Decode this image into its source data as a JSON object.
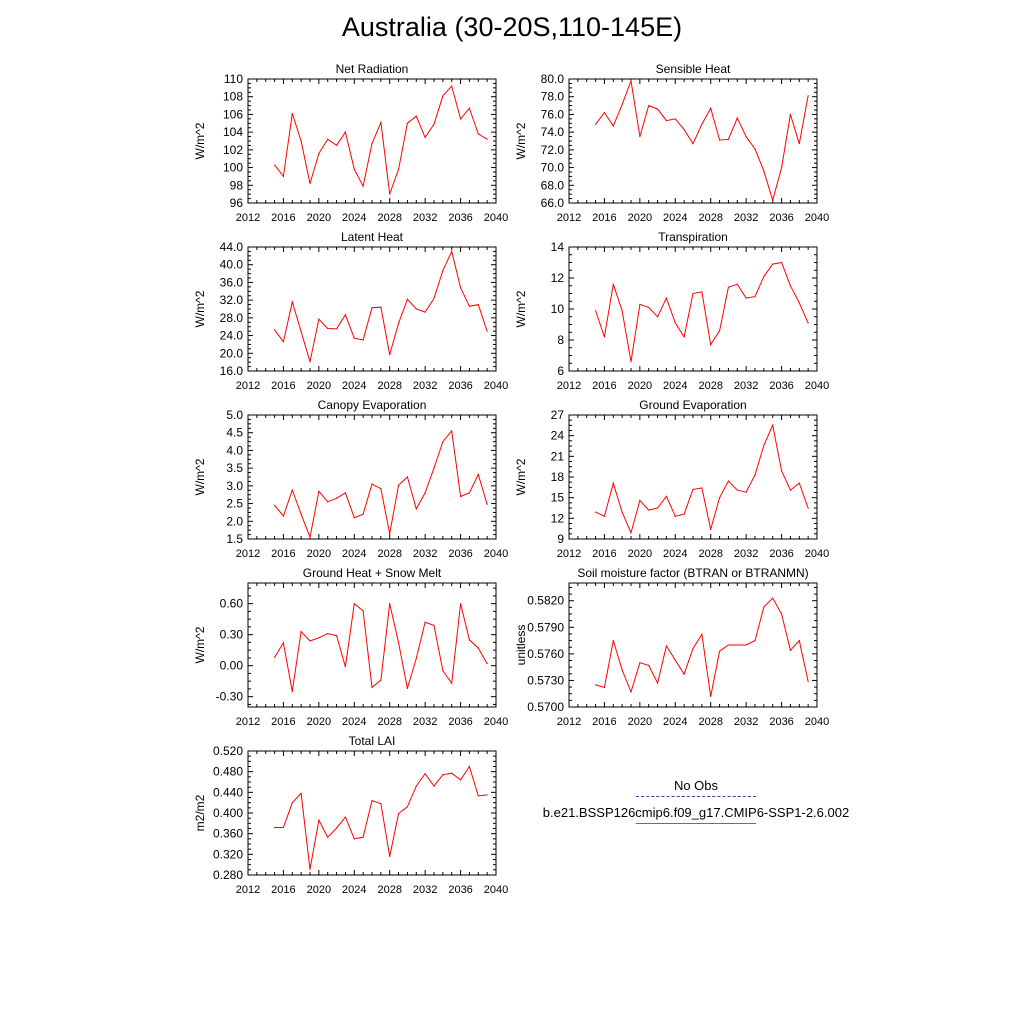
{
  "title": "Australia (30-20S,110-145E)",
  "legend": {
    "obs_label": "No Obs",
    "model_label": "b.e21.BSSP126cmip6.f09_g17.CMIP6-SSP1-2.6.002",
    "obs_color": "#3a3aa8",
    "model_color": "#ff0000"
  },
  "chart_data": [
    {
      "type": "line",
      "title": "Net Radiation",
      "ylabel": "W/m^2",
      "xlim": [
        2012,
        2040
      ],
      "xticks": [
        "2012",
        "2016",
        "2020",
        "2024",
        "2028",
        "2032",
        "2036",
        "2040"
      ],
      "ylim": [
        96,
        110
      ],
      "yticks": [
        "96",
        "98",
        "100",
        "102",
        "104",
        "106",
        "108",
        "110"
      ],
      "series": [
        {
          "x": [
            2015,
            2016,
            2017,
            2018,
            2019,
            2020,
            2021,
            2022,
            2023,
            2024,
            2025,
            2026,
            2027,
            2028,
            2029,
            2030,
            2031,
            2032,
            2033,
            2034,
            2035,
            2036,
            2037,
            2038,
            2039
          ],
          "values": [
            100.3,
            99.0,
            106.1,
            103.0,
            98.2,
            101.6,
            103.2,
            102.5,
            104.0,
            99.8,
            97.9,
            102.7,
            105.1,
            97.0,
            99.8,
            105.0,
            105.8,
            103.4,
            104.9,
            108.1,
            109.2,
            105.5,
            106.7,
            103.8,
            103.2
          ]
        }
      ]
    },
    {
      "type": "line",
      "title": "Sensible Heat",
      "ylabel": "W/m^2",
      "xlim": [
        2012,
        2040
      ],
      "xticks": [
        "2012",
        "2016",
        "2020",
        "2024",
        "2028",
        "2032",
        "2036",
        "2040"
      ],
      "ylim": [
        66,
        80
      ],
      "yticks": [
        "66.0",
        "68.0",
        "70.0",
        "72.0",
        "74.0",
        "76.0",
        "78.0",
        "80.0"
      ],
      "series": [
        {
          "x": [
            2015,
            2016,
            2017,
            2018,
            2019,
            2020,
            2021,
            2022,
            2023,
            2024,
            2025,
            2026,
            2027,
            2028,
            2029,
            2030,
            2031,
            2032,
            2033,
            2034,
            2035,
            2036,
            2037,
            2038,
            2039
          ],
          "values": [
            74.9,
            76.2,
            74.7,
            77.1,
            79.8,
            73.5,
            77.0,
            76.6,
            75.3,
            75.5,
            74.3,
            72.7,
            74.9,
            76.7,
            73.1,
            73.2,
            75.6,
            73.5,
            72.1,
            69.6,
            66.3,
            70.0,
            76.0,
            72.7,
            78.1
          ]
        }
      ]
    },
    {
      "type": "line",
      "title": "Latent Heat",
      "ylabel": "W/m^2",
      "xlim": [
        2012,
        2040
      ],
      "xticks": [
        "2012",
        "2016",
        "2020",
        "2024",
        "2028",
        "2032",
        "2036",
        "2040"
      ],
      "ylim": [
        16,
        44
      ],
      "yticks": [
        "16.0",
        "20.0",
        "24.0",
        "28.0",
        "32.0",
        "36.0",
        "40.0",
        "44.0"
      ],
      "series": [
        {
          "x": [
            2015,
            2016,
            2017,
            2018,
            2019,
            2020,
            2021,
            2022,
            2023,
            2024,
            2025,
            2026,
            2027,
            2028,
            2029,
            2030,
            2031,
            2032,
            2033,
            2034,
            2035,
            2036,
            2037,
            2038,
            2039
          ],
          "values": [
            25.3,
            22.6,
            31.6,
            24.9,
            18.1,
            27.7,
            25.6,
            25.5,
            28.7,
            23.4,
            23.0,
            30.3,
            30.4,
            19.7,
            26.8,
            32.2,
            30.0,
            29.3,
            32.4,
            38.7,
            43.0,
            34.8,
            30.6,
            31.0,
            25.0
          ]
        }
      ]
    },
    {
      "type": "line",
      "title": "Transpiration",
      "ylabel": "W/m^2",
      "xlim": [
        2012,
        2040
      ],
      "xticks": [
        "2012",
        "2016",
        "2020",
        "2024",
        "2028",
        "2032",
        "2036",
        "2040"
      ],
      "ylim": [
        6,
        14
      ],
      "yticks": [
        "6",
        "8",
        "10",
        "12",
        "14"
      ],
      "series": [
        {
          "x": [
            2015,
            2016,
            2017,
            2018,
            2019,
            2020,
            2021,
            2022,
            2023,
            2024,
            2025,
            2026,
            2027,
            2028,
            2029,
            2030,
            2031,
            2032,
            2033,
            2034,
            2035,
            2036,
            2037,
            2038,
            2039
          ],
          "values": [
            9.9,
            8.2,
            11.6,
            9.9,
            6.6,
            10.3,
            10.1,
            9.5,
            10.7,
            9.1,
            8.2,
            11.0,
            11.1,
            7.7,
            8.6,
            11.4,
            11.6,
            10.7,
            10.8,
            12.1,
            12.9,
            13.0,
            11.5,
            10.4,
            9.1
          ]
        }
      ]
    },
    {
      "type": "line",
      "title": "Canopy Evaporation",
      "ylabel": "W/m^2",
      "xlim": [
        2012,
        2040
      ],
      "xticks": [
        "2012",
        "2016",
        "2020",
        "2024",
        "2028",
        "2032",
        "2036",
        "2040"
      ],
      "ylim": [
        1.5,
        5.0
      ],
      "yticks": [
        "1.5",
        "2.0",
        "2.5",
        "3.0",
        "3.5",
        "4.0",
        "4.5",
        "5.0"
      ],
      "series": [
        {
          "x": [
            2015,
            2016,
            2017,
            2018,
            2019,
            2020,
            2021,
            2022,
            2023,
            2024,
            2025,
            2026,
            2027,
            2028,
            2029,
            2030,
            2031,
            2032,
            2033,
            2034,
            2035,
            2036,
            2037,
            2038,
            2039
          ],
          "values": [
            2.45,
            2.15,
            2.88,
            2.2,
            1.55,
            2.85,
            2.55,
            2.65,
            2.8,
            2.1,
            2.2,
            3.05,
            2.92,
            1.65,
            3.02,
            3.25,
            2.35,
            2.8,
            3.5,
            4.25,
            4.55,
            2.7,
            2.8,
            3.32,
            2.48
          ]
        }
      ]
    },
    {
      "type": "line",
      "title": "Ground Evaporation",
      "ylabel": "W/m^2",
      "xlim": [
        2012,
        2040
      ],
      "xticks": [
        "2012",
        "2016",
        "2020",
        "2024",
        "2028",
        "2032",
        "2036",
        "2040"
      ],
      "ylim": [
        9,
        27
      ],
      "yticks": [
        "9",
        "12",
        "15",
        "18",
        "21",
        "24",
        "27"
      ],
      "series": [
        {
          "x": [
            2015,
            2016,
            2017,
            2018,
            2019,
            2020,
            2021,
            2022,
            2023,
            2024,
            2025,
            2026,
            2027,
            2028,
            2029,
            2030,
            2031,
            2032,
            2033,
            2034,
            2035,
            2036,
            2037,
            2038,
            2039
          ],
          "values": [
            12.9,
            12.3,
            17.1,
            12.9,
            9.9,
            14.6,
            13.2,
            13.5,
            15.2,
            12.3,
            12.6,
            16.2,
            16.4,
            10.4,
            15.0,
            17.4,
            16.1,
            15.8,
            18.3,
            22.6,
            25.5,
            18.9,
            16.1,
            17.1,
            13.5
          ]
        }
      ]
    },
    {
      "type": "line",
      "title": "Ground Heat + Snow Melt",
      "ylabel": "W/m^2",
      "xlim": [
        2012,
        2040
      ],
      "xticks": [
        "2012",
        "2016",
        "2020",
        "2024",
        "2028",
        "2032",
        "2036",
        "2040"
      ],
      "ylim": [
        -0.4,
        0.8
      ],
      "yticks": [
        "-0.30",
        "0.00",
        "0.30",
        "0.60"
      ],
      "ytick_values": [
        -0.3,
        0.0,
        0.3,
        0.6
      ],
      "series": [
        {
          "x": [
            2015,
            2016,
            2017,
            2018,
            2019,
            2020,
            2021,
            2022,
            2023,
            2024,
            2025,
            2026,
            2027,
            2028,
            2029,
            2030,
            2031,
            2032,
            2033,
            2034,
            2035,
            2036,
            2037,
            2038,
            2039
          ],
          "values": [
            0.08,
            0.22,
            -0.25,
            0.33,
            0.24,
            0.27,
            0.31,
            0.29,
            -0.01,
            0.6,
            0.53,
            -0.21,
            -0.14,
            0.6,
            0.22,
            -0.22,
            0.07,
            0.42,
            0.39,
            -0.05,
            -0.17,
            0.6,
            0.25,
            0.17,
            0.02
          ]
        }
      ]
    },
    {
      "type": "line",
      "title": "Soil moisture factor (BTRAN or BTRANMN)",
      "ylabel": "unitless",
      "xlim": [
        2012,
        2040
      ],
      "xticks": [
        "2012",
        "2016",
        "2020",
        "2024",
        "2028",
        "2032",
        "2036",
        "2040"
      ],
      "ylim": [
        0.57,
        0.584
      ],
      "yticks": [
        "0.5700",
        "0.5730",
        "0.5760",
        "0.5790",
        "0.5820"
      ],
      "ytick_values": [
        0.57,
        0.573,
        0.576,
        0.579,
        0.582
      ],
      "series": [
        {
          "x": [
            2015,
            2016,
            2017,
            2018,
            2019,
            2020,
            2021,
            2022,
            2023,
            2024,
            2025,
            2026,
            2027,
            2028,
            2029,
            2030,
            2031,
            2032,
            2033,
            2034,
            2035,
            2036,
            2037,
            2038,
            2039
          ],
          "values": [
            0.5725,
            0.5722,
            0.5775,
            0.5742,
            0.5717,
            0.575,
            0.5747,
            0.5727,
            0.5769,
            0.5753,
            0.5737,
            0.5766,
            0.5782,
            0.5712,
            0.5763,
            0.577,
            0.577,
            0.577,
            0.5775,
            0.5813,
            0.5823,
            0.5805,
            0.5764,
            0.5775,
            0.5729
          ]
        }
      ]
    },
    {
      "type": "line",
      "title": "Total LAI",
      "ylabel": "m2/m2",
      "xlim": [
        2012,
        2040
      ],
      "xticks": [
        "2012",
        "2016",
        "2020",
        "2024",
        "2028",
        "2032",
        "2036",
        "2040"
      ],
      "ylim": [
        0.28,
        0.52
      ],
      "yticks": [
        "0.280",
        "0.320",
        "0.360",
        "0.400",
        "0.440",
        "0.480",
        "0.520"
      ],
      "series": [
        {
          "x": [
            2015,
            2016,
            2017,
            2018,
            2019,
            2020,
            2021,
            2022,
            2023,
            2024,
            2025,
            2026,
            2027,
            2028,
            2029,
            2030,
            2031,
            2032,
            2033,
            2034,
            2035,
            2036,
            2037,
            2038,
            2039
          ],
          "values": [
            0.372,
            0.372,
            0.42,
            0.438,
            0.291,
            0.386,
            0.353,
            0.371,
            0.392,
            0.35,
            0.353,
            0.424,
            0.418,
            0.316,
            0.399,
            0.412,
            0.452,
            0.476,
            0.452,
            0.474,
            0.477,
            0.464,
            0.49,
            0.433,
            0.435
          ]
        }
      ]
    }
  ]
}
